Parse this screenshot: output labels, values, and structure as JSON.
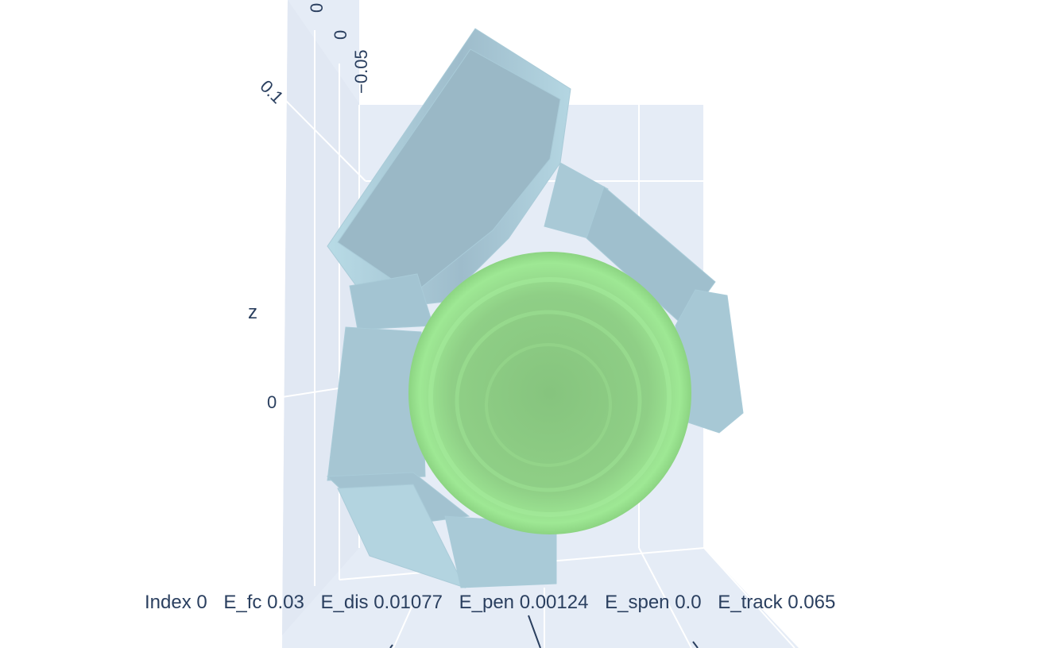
{
  "chart_data": {
    "type": "mesh3d",
    "scene": {
      "background": "#e5ecf6",
      "grid": true,
      "axes": {
        "z": {
          "title": "z",
          "tick_labels": [
            "0.1",
            "0"
          ]
        },
        "x": {
          "tick_labels": [
            "−0.05",
            "0",
            "0"
          ]
        }
      }
    },
    "meshes": [
      {
        "name": "hand",
        "color": "#add8e6"
      },
      {
        "name": "object",
        "color": "#90ee90"
      }
    ],
    "annotation": {
      "index": "Index 0",
      "e_fc": "E_fc 0.03",
      "e_dis": "E_dis 0.01077",
      "e_pen": "E_pen 0.00124",
      "e_spen": "E_spen 0.0",
      "e_track": "E_track 0.065"
    }
  }
}
